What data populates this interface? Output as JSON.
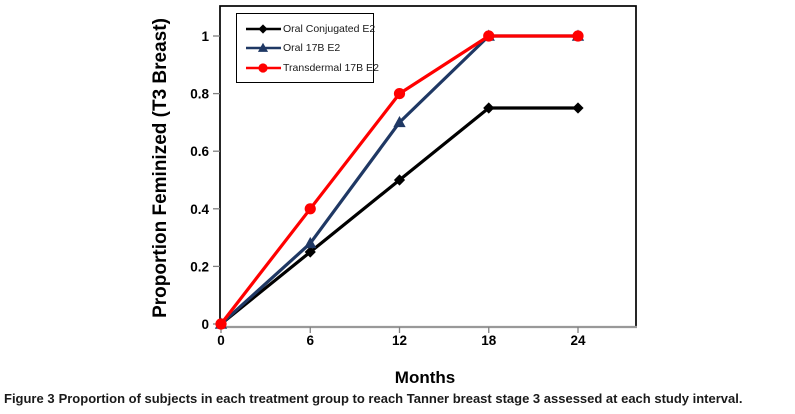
{
  "figure": {
    "caption_prefix": "Figure 3",
    "caption_text": "Proportion of subjects in each treatment group to reach Tanner breast stage 3 assessed at each study interval."
  },
  "chart_data": {
    "type": "line",
    "title": "",
    "xlabel": "Months",
    "ylabel": "Proportion Feminized (T3 Breast)",
    "x": [
      0,
      6,
      12,
      18,
      24
    ],
    "x_ticks": [
      0,
      6,
      12,
      18,
      24
    ],
    "y_ticks": [
      0,
      0.2,
      0.4,
      0.6,
      0.8,
      1
    ],
    "xlim": [
      0,
      28
    ],
    "ylim": [
      0,
      1.1
    ],
    "grid": false,
    "legend_position": "top-left-inside",
    "series": [
      {
        "name": "Oral Conjugated E2",
        "marker": "diamond",
        "color": "#000000",
        "values": [
          0,
          0.25,
          0.5,
          0.75,
          0.75
        ]
      },
      {
        "name": "Oral 17B E2",
        "marker": "triangle",
        "color": "#1F3864",
        "values": [
          0,
          0.28,
          0.7,
          1.0,
          1.0
        ]
      },
      {
        "name": "Transdermal 17B E2",
        "marker": "circle",
        "color": "#FF0000",
        "values": [
          0,
          0.4,
          0.8,
          1.0,
          1.0
        ]
      }
    ],
    "colors": {
      "frame": "#000000",
      "axis": "#999999",
      "tick": "#808080",
      "tick_text": "#000000",
      "background": "#FFFFFF"
    }
  }
}
